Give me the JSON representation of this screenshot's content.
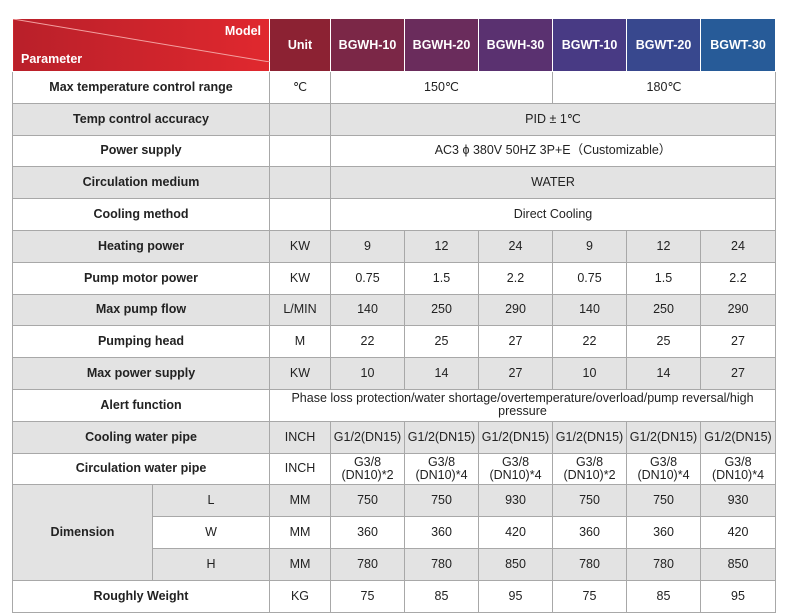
{
  "header": {
    "model": "Model",
    "parameter": "Parameter",
    "unit": "Unit",
    "models": [
      "BGWH-10",
      "BGWH-20",
      "BGWH-30",
      "BGWT-10",
      "BGWT-20",
      "BGWT-30"
    ]
  },
  "table": {
    "rows": [
      {
        "label": "Max temperature control range",
        "unit": "℃",
        "values": [
          "150℃",
          "180℃"
        ]
      },
      {
        "label": "Temp control accuracy",
        "values": [
          "PID ± 1℃"
        ]
      },
      {
        "label": "Power supply",
        "values": [
          "AC3 ϕ 380V 50HZ 3P+E（Customizable）"
        ]
      },
      {
        "label": "Circulation medium",
        "values": [
          "WATER"
        ]
      },
      {
        "label": "Cooling method",
        "values": [
          "Direct Cooling"
        ]
      },
      {
        "label": "Heating power",
        "unit": "KW",
        "values": [
          "9",
          "12",
          "24",
          "9",
          "12",
          "24"
        ]
      },
      {
        "label": "Pump motor power",
        "unit": "KW",
        "values": [
          "0.75",
          "1.5",
          "2.2",
          "0.75",
          "1.5",
          "2.2"
        ]
      },
      {
        "label": "Max pump flow",
        "unit": "L/MIN",
        "values": [
          "140",
          "250",
          "290",
          "140",
          "250",
          "290"
        ]
      },
      {
        "label": "Pumping head",
        "unit": "M",
        "values": [
          "22",
          "25",
          "27",
          "22",
          "25",
          "27"
        ]
      },
      {
        "label": "Max power supply",
        "unit": "KW",
        "values": [
          "10",
          "14",
          "27",
          "10",
          "14",
          "27"
        ]
      },
      {
        "label": "Alert function",
        "value": "Phase loss protection/water shortage/overtemperature/overload/pump reversal/high pressure"
      },
      {
        "label": "Cooling water pipe",
        "unit": "INCH",
        "values": [
          "G1/2(DN15)",
          "G1/2(DN15)",
          "G1/2(DN15)",
          "G1/2(DN15)",
          "G1/2(DN15)",
          "G1/2(DN15)"
        ]
      },
      {
        "label": "Circulation water pipe",
        "unit": "INCH",
        "values": [
          "G3/8\n(DN10)*2",
          "G3/8\n(DN10)*4",
          "G3/8\n(DN10)*4",
          "G3/8\n(DN10)*2",
          "G3/8\n(DN10)*4",
          "G3/8\n(DN10)*4"
        ]
      },
      {
        "label": "Dimension",
        "rows": [
          {
            "label": "L",
            "unit": "MM",
            "values": [
              "750",
              "750",
              "930",
              "750",
              "750",
              "930"
            ]
          },
          {
            "label": "W",
            "unit": "MM",
            "values": [
              "360",
              "360",
              "420",
              "360",
              "360",
              "420"
            ]
          },
          {
            "label": "H",
            "unit": "MM",
            "values": [
              "780",
              "780",
              "850",
              "780",
              "780",
              "850"
            ]
          }
        ]
      },
      {
        "label": "Roughly Weight",
        "unit": "KG",
        "values": [
          "75",
          "85",
          "95",
          "75",
          "85",
          "95"
        ]
      }
    ]
  }
}
